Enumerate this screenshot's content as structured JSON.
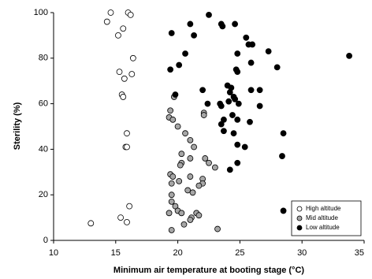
{
  "chart_data": {
    "type": "scatter",
    "xlabel": "Minimum air temperature at booting stage (°C)",
    "ylabel": "Sterility (%)",
    "xlim": [
      10,
      35
    ],
    "xticks": [
      10,
      15,
      20,
      25,
      30,
      35
    ],
    "ylim": [
      0,
      100
    ],
    "yticks": [
      0,
      20,
      40,
      60,
      80,
      100
    ],
    "legend": "lower right",
    "series": [
      {
        "name": "High altitude",
        "color": "#ffffff",
        "x": [
          14.6,
          16.0,
          16.2,
          14.3,
          15.6,
          15.2,
          16.4,
          15.3,
          16.3,
          15.7,
          15.5,
          15.6,
          15.9,
          15.8,
          15.9,
          16.1,
          15.4,
          15.9,
          13.0
        ],
        "values": [
          100,
          100,
          99,
          96,
          93,
          90,
          80,
          74,
          73,
          71,
          64,
          63,
          47,
          41,
          41,
          15,
          10,
          8,
          7.5
        ]
      },
      {
        "name": "Mid altitude",
        "color": "#a6a6a6",
        "x": [
          19.7,
          19.4,
          19.3,
          19.6,
          20.0,
          20.6,
          22.1,
          22.1,
          21.0,
          21.3,
          20.3,
          21.0,
          20.3,
          22.2,
          22.5,
          19.4,
          19.6,
          20.2,
          21.0,
          19.5,
          20.1,
          22.0,
          22.0,
          21.7,
          23.0,
          19.5,
          20.8,
          21.2,
          19.5,
          19.8,
          20.0,
          19.3,
          20.3,
          21.5,
          21.7,
          21.1,
          21.0,
          20.5,
          23.2,
          19.5
        ],
        "values": [
          63,
          57,
          54,
          53,
          50,
          47,
          56,
          55,
          44,
          41,
          38,
          36,
          34,
          36,
          34,
          29,
          28,
          33,
          28,
          25,
          26,
          27,
          25,
          24,
          32,
          20,
          22,
          21,
          17,
          15,
          13,
          12,
          12,
          12,
          11,
          10,
          9,
          7,
          5,
          4.5
        ]
      },
      {
        "name": "Low altitude",
        "color": "#000000",
        "x": [
          22.5,
          23.5,
          23.6,
          24.6,
          25.5,
          25.7,
          26.0,
          19.5,
          21.0,
          21.3,
          20.6,
          24.8,
          25.9,
          27.3,
          28.0,
          33.8,
          19.4,
          20.1,
          24.7,
          24.8,
          22.0,
          24.0,
          24.3,
          24.2,
          24.5,
          25.9,
          26.6,
          19.8,
          24.1,
          24.6,
          22.4,
          23.4,
          23.5,
          24.9,
          26.6,
          23.7,
          23.5,
          24.4,
          24.8,
          25.8,
          23.7,
          24.5,
          28.5,
          24.8,
          25.4,
          24.2,
          24.8,
          28.4,
          28.5
        ],
        "values": [
          99,
          95,
          94,
          95,
          89,
          86,
          86,
          91,
          95,
          90,
          82,
          82,
          78,
          83,
          76,
          81,
          75,
          77,
          75,
          74,
          66,
          68,
          67,
          65,
          63,
          66,
          66,
          64,
          61,
          62,
          60,
          60,
          59,
          60,
          59,
          53,
          51,
          55,
          53,
          52,
          48,
          47,
          47,
          42,
          41,
          31,
          34,
          37,
          13
        ]
      }
    ]
  }
}
